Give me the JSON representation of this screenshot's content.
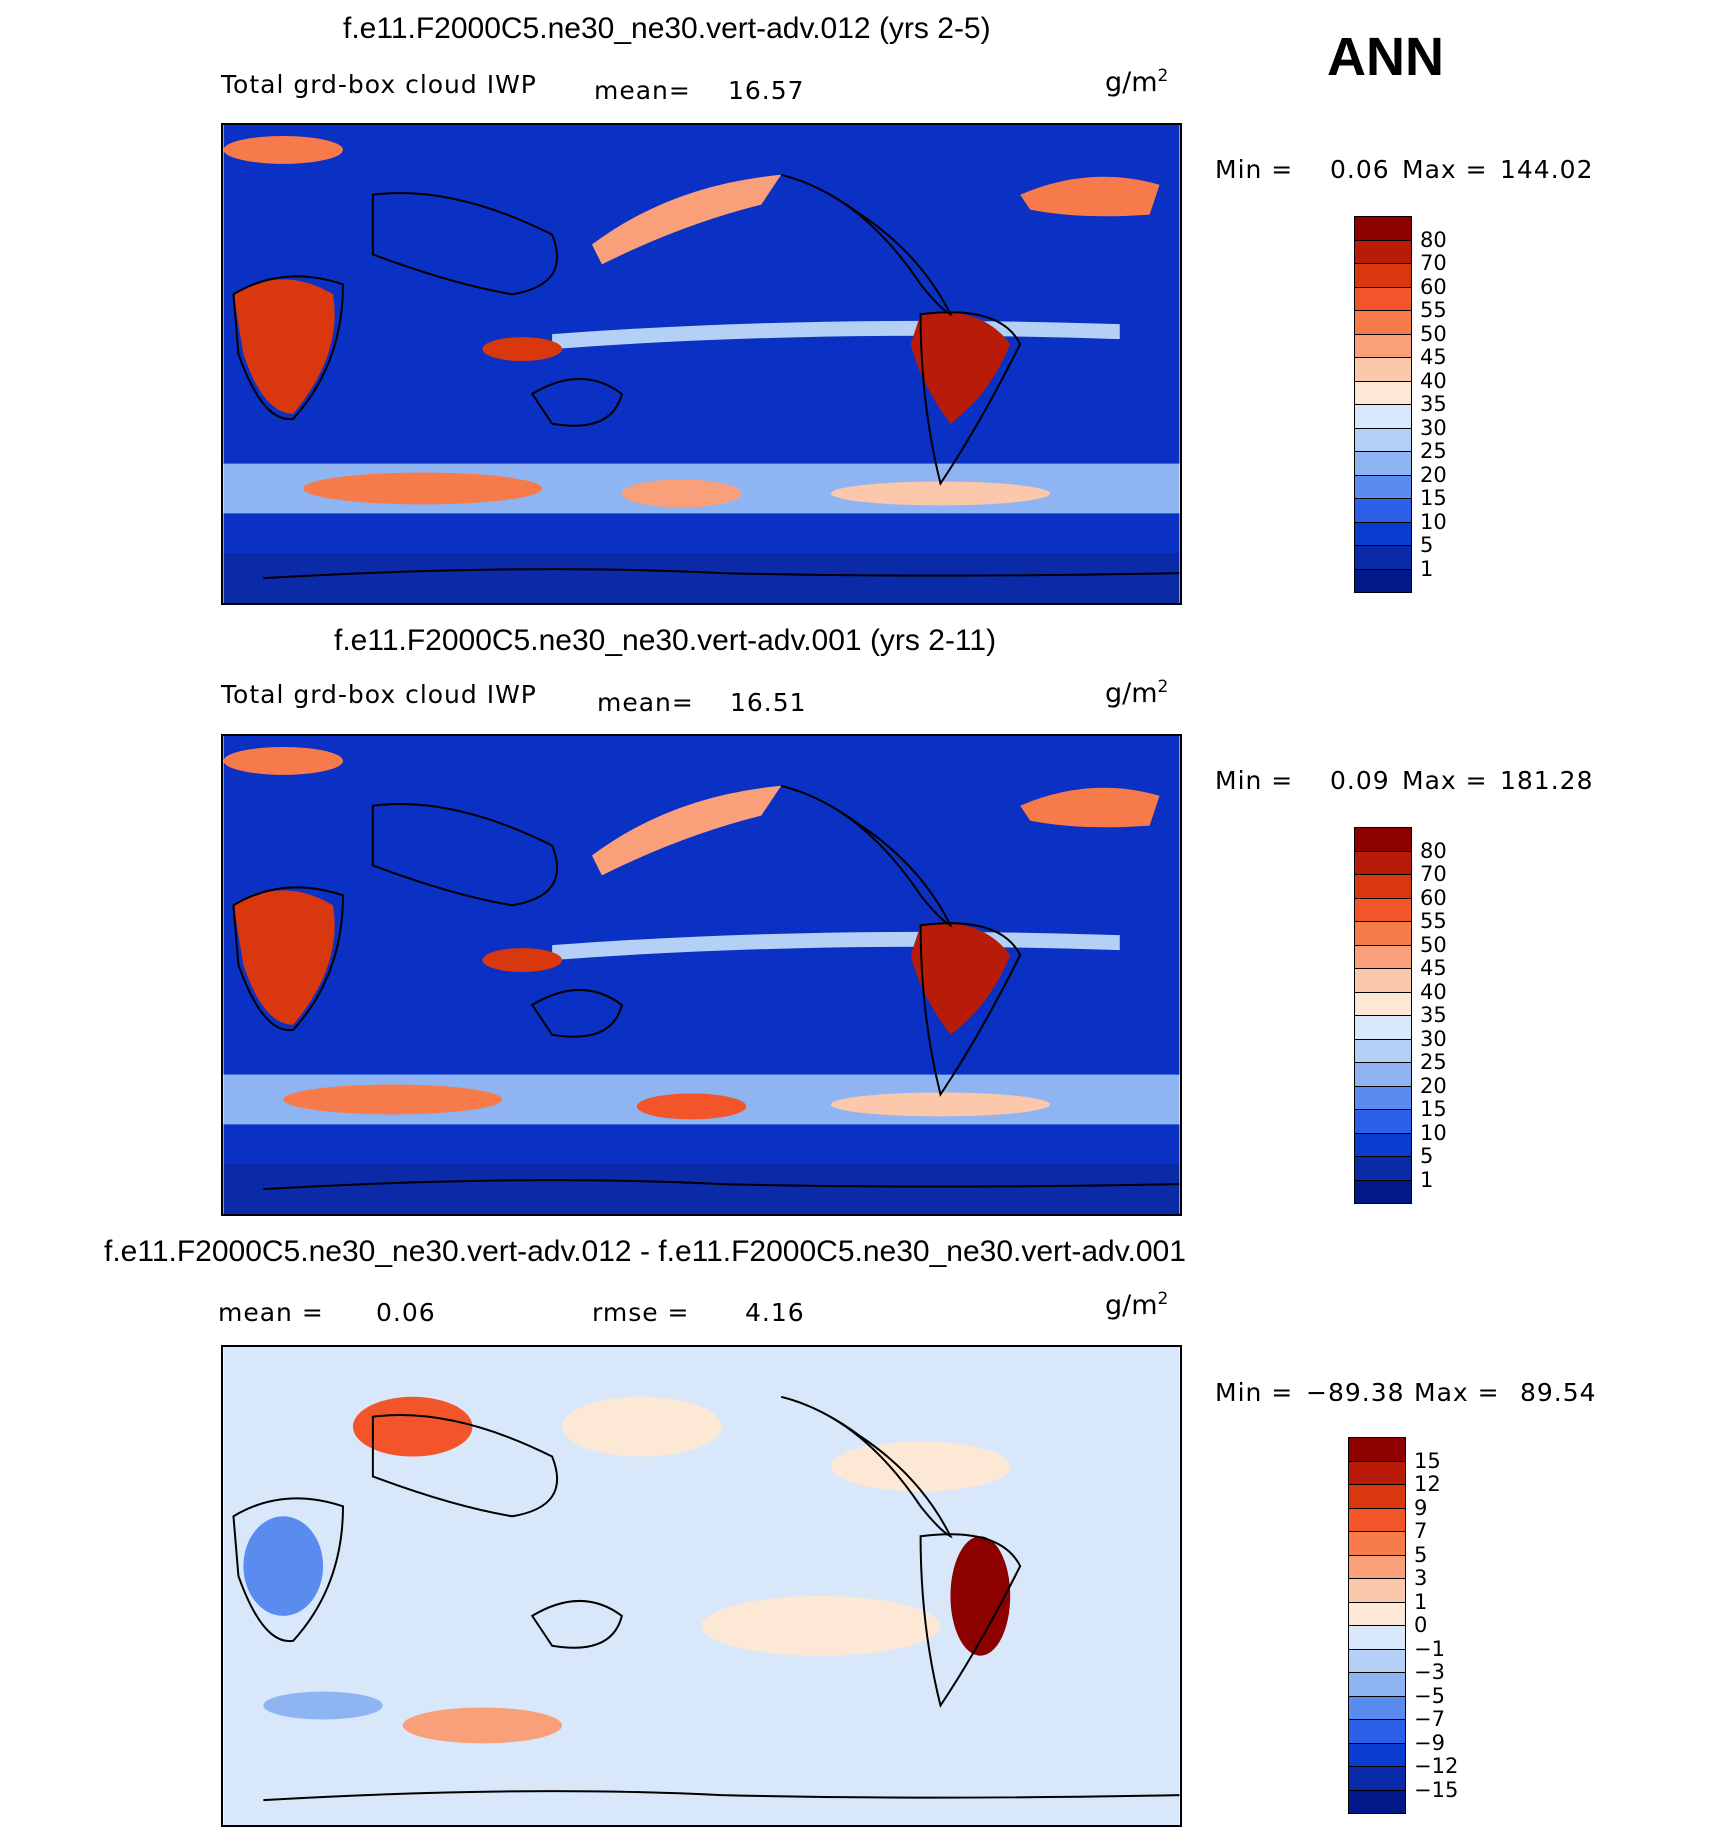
{
  "season": "ANN",
  "units_base": "g/m",
  "units_exp": "2",
  "colors": {
    "ocean_low": "#0a2fc0",
    "land_line": "#000000",
    "diff_bg": "#d9e8fb"
  },
  "panels": [
    {
      "title": "f.e11.F2000C5.ne30_ne30.vert-adv.012 (yrs 2-5)",
      "variable": "Total grd-box cloud IWP",
      "mean_label": "mean=",
      "mean_value": "16.57",
      "min_label": "Min =",
      "min_value": "0.06",
      "max_label": "Max =",
      "max_value": "144.02"
    },
    {
      "title": "f.e11.F2000C5.ne30_ne30.vert-adv.001 (yrs 2-11)",
      "variable": "Total grd-box cloud IWP",
      "mean_label": "mean=",
      "mean_value": "16.51",
      "min_label": "Min =",
      "min_value": "0.09",
      "max_label": "Max =",
      "max_value": "181.28"
    },
    {
      "title": "f.e11.F2000C5.ne30_ne30.vert-adv.012 - f.e11.F2000C5.ne30_ne30.vert-adv.001",
      "mean_label": "mean =",
      "mean_value": "0.06",
      "rmse_label": "rmse =",
      "rmse_value": "4.16",
      "min_label": "Min =",
      "min_value": "−89.38",
      "max_label": "Max =",
      "max_value": "89.54"
    }
  ],
  "colorbar_abs": {
    "levels": [
      "80",
      "70",
      "60",
      "55",
      "50",
      "45",
      "40",
      "35",
      "30",
      "25",
      "20",
      "15",
      "10",
      "5",
      "1"
    ],
    "colors": [
      "#8c0000",
      "#b81c08",
      "#d9380f",
      "#f2552a",
      "#f77a4a",
      "#f9a07a",
      "#fcc8ac",
      "#fde8d6",
      "#d8e8fa",
      "#b4d0f6",
      "#8fb4f2",
      "#5a8cf0",
      "#2c60e8",
      "#0a3cd0",
      "#0a2aa8",
      "#001888"
    ]
  },
  "colorbar_diff": {
    "levels": [
      "15",
      "12",
      "9",
      "7",
      "5",
      "3",
      "1",
      "0",
      "−1",
      "−3",
      "−5",
      "−7",
      "−9",
      "−12",
      "−15"
    ],
    "colors": [
      "#8c0000",
      "#b81c08",
      "#d9380f",
      "#f2552a",
      "#f77a4a",
      "#f9a07a",
      "#fcc8ac",
      "#fde8d6",
      "#d8e8fa",
      "#b4d0f6",
      "#8fb4f2",
      "#5a8cf0",
      "#2c60e8",
      "#0a3cd0",
      "#0a2aa8",
      "#001888"
    ]
  }
}
